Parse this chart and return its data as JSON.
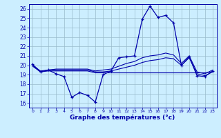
{
  "title": "Graphe des températures (°c)",
  "background_color": "#cceeff",
  "grid_color": "#99bbcc",
  "line_color": "#0000aa",
  "xlim": [
    -0.5,
    23.5
  ],
  "ylim": [
    15.5,
    26.5
  ],
  "yticks": [
    16,
    17,
    18,
    19,
    20,
    21,
    22,
    23,
    24,
    25,
    26
  ],
  "xticks": [
    0,
    1,
    2,
    3,
    4,
    5,
    6,
    7,
    8,
    9,
    10,
    11,
    12,
    13,
    14,
    15,
    16,
    17,
    18,
    19,
    20,
    21,
    22,
    23
  ],
  "xtick_labels": [
    "0",
    "1",
    "2",
    "3",
    "4",
    "5",
    "6",
    "7",
    "8",
    "9",
    "10",
    "11",
    "12",
    "13",
    "14",
    "15",
    "16",
    "17",
    "18",
    "19",
    "20",
    "21",
    "22",
    "23"
  ],
  "curve_main": [
    20.1,
    19.3,
    19.5,
    19.1,
    18.8,
    16.6,
    17.1,
    16.8,
    16.1,
    19.0,
    19.4,
    20.8,
    20.9,
    21.0,
    24.9,
    26.3,
    25.1,
    25.3,
    24.5,
    20.0,
    20.9,
    18.9,
    18.8,
    19.4
  ],
  "curve_flat1": [
    19.9,
    19.3,
    19.4,
    19.4,
    19.4,
    19.4,
    19.4,
    19.4,
    19.2,
    19.2,
    19.2,
    19.2,
    19.2,
    19.2,
    19.2,
    19.2,
    19.2,
    19.2,
    19.2,
    19.2,
    19.2,
    19.2,
    19.2,
    19.3
  ],
  "curve_rising": [
    20.0,
    19.3,
    19.5,
    19.5,
    19.5,
    19.5,
    19.5,
    19.5,
    19.3,
    19.3,
    19.4,
    19.6,
    19.8,
    20.0,
    20.3,
    20.5,
    20.6,
    20.8,
    20.7,
    20.0,
    20.8,
    19.1,
    18.9,
    19.3
  ],
  "curve_upper": [
    20.0,
    19.4,
    19.5,
    19.6,
    19.6,
    19.6,
    19.6,
    19.6,
    19.4,
    19.5,
    19.6,
    19.9,
    20.2,
    20.4,
    20.8,
    21.0,
    21.1,
    21.3,
    21.1,
    20.2,
    21.0,
    19.3,
    19.1,
    19.5
  ]
}
